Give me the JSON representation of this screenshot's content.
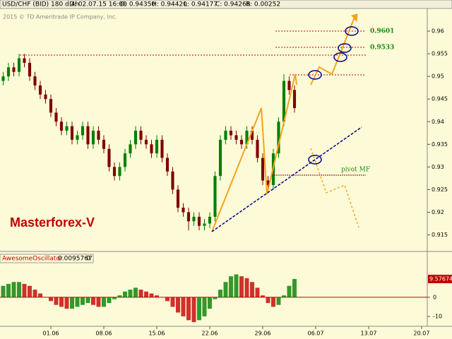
{
  "header": {
    "symbol": "USD/CHF (BID) 180 d 4h",
    "date": "D: 02.07.15 16:00",
    "open": "O: 0.94350",
    "high": "H: 0.94420",
    "low": "L: 0.94177",
    "close": "C: 0.94268",
    "range": "R: 0.00252",
    "copyright": "2015 © TD Ameritrade IP Company, Inc.",
    "watermark": "Masterforex-V",
    "levels": [
      "0.9601",
      "0.9533",
      "pivot MF"
    ]
  },
  "chart_data": [
    {
      "type": "candlestick",
      "title": "USD/CHF (BID) 180 d 4h",
      "up_color": "#008000",
      "down_color": "#800000",
      "x": [
        -5,
        -4,
        -3,
        -2,
        -1,
        0,
        1,
        2,
        3,
        4,
        5,
        6,
        7,
        8,
        9,
        10,
        11,
        12,
        13,
        14,
        15,
        16,
        17,
        18,
        19,
        20,
        21,
        22,
        23,
        24,
        25,
        26,
        27,
        28,
        29,
        30,
        31,
        32,
        33,
        34,
        35,
        36,
        37,
        38,
        39,
        40,
        41,
        42,
        43,
        44,
        45,
        46,
        47,
        48,
        49,
        50
      ],
      "open": [
        0.949,
        0.95,
        0.952,
        0.951,
        0.954,
        0.953,
        0.95,
        0.948,
        0.946,
        0.945,
        0.942,
        0.94,
        0.938,
        0.939,
        0.936,
        0.937,
        0.939,
        0.935,
        0.938,
        0.936,
        0.934,
        0.93,
        0.928,
        0.93,
        0.933,
        0.935,
        0.938,
        0.936,
        0.935,
        0.933,
        0.936,
        0.932,
        0.929,
        0.925,
        0.921,
        0.92,
        0.918,
        0.919,
        0.917,
        0.9175,
        0.919,
        0.928,
        0.936,
        0.938,
        0.937,
        0.936,
        0.935,
        0.938,
        0.936,
        0.932,
        0.927,
        0.926,
        0.933,
        0.94,
        0.949,
        0.947
      ],
      "high": [
        0.951,
        0.953,
        0.953,
        0.955,
        0.955,
        0.954,
        0.951,
        0.949,
        0.947,
        0.946,
        0.943,
        0.941,
        0.94,
        0.94,
        0.938,
        0.94,
        0.94,
        0.939,
        0.939,
        0.937,
        0.935,
        0.931,
        0.931,
        0.934,
        0.936,
        0.939,
        0.939,
        0.937,
        0.936,
        0.937,
        0.937,
        0.933,
        0.93,
        0.926,
        0.922,
        0.921,
        0.92,
        0.92,
        0.9185,
        0.92,
        0.929,
        0.937,
        0.939,
        0.939,
        0.938,
        0.937,
        0.939,
        0.939,
        0.937,
        0.933,
        0.928,
        0.934,
        0.941,
        0.9505,
        0.95,
        0.948
      ],
      "low": [
        0.948,
        0.949,
        0.95,
        0.95,
        0.952,
        0.949,
        0.947,
        0.945,
        0.944,
        0.941,
        0.939,
        0.937,
        0.937,
        0.935,
        0.935,
        0.936,
        0.934,
        0.934,
        0.935,
        0.933,
        0.929,
        0.927,
        0.927,
        0.929,
        0.932,
        0.934,
        0.935,
        0.934,
        0.932,
        0.932,
        0.931,
        0.928,
        0.924,
        0.92,
        0.919,
        0.916,
        0.917,
        0.916,
        0.916,
        0.9165,
        0.918,
        0.927,
        0.935,
        0.936,
        0.935,
        0.934,
        0.934,
        0.935,
        0.931,
        0.926,
        0.9245,
        0.925,
        0.932,
        0.939,
        0.946,
        0.942
      ],
      "close": [
        0.95,
        0.952,
        0.951,
        0.954,
        0.953,
        0.95,
        0.948,
        0.946,
        0.945,
        0.942,
        0.94,
        0.938,
        0.939,
        0.936,
        0.937,
        0.939,
        0.935,
        0.938,
        0.936,
        0.934,
        0.93,
        0.928,
        0.93,
        0.933,
        0.935,
        0.938,
        0.936,
        0.935,
        0.933,
        0.936,
        0.932,
        0.929,
        0.925,
        0.921,
        0.92,
        0.918,
        0.919,
        0.917,
        0.9175,
        0.919,
        0.928,
        0.936,
        0.938,
        0.937,
        0.936,
        0.935,
        0.938,
        0.936,
        0.932,
        0.927,
        0.926,
        0.933,
        0.94,
        0.949,
        0.947,
        0.943
      ],
      "xlim": [
        -5.6,
        75.07
      ],
      "ylim": [
        0.9115,
        0.965
      ],
      "yticks": [
        0.96,
        0.955,
        0.95,
        0.945,
        0.94,
        0.935,
        0.93,
        0.925,
        0.92,
        0.915
      ]
    },
    {
      "type": "histogram_oscillator",
      "title": "AwesomeOscillator",
      "readouts": [
        "0.0095767",
        "0"
      ],
      "last_label": "9.57674",
      "up_color": "#008000",
      "down_color": "#c00000",
      "x": [
        -5,
        -4,
        -3,
        -2,
        -1,
        0,
        1,
        2,
        3,
        4,
        5,
        6,
        7,
        8,
        9,
        10,
        11,
        12,
        13,
        14,
        15,
        16,
        17,
        18,
        19,
        20,
        21,
        22,
        23,
        24,
        25,
        26,
        27,
        28,
        29,
        30,
        31,
        32,
        33,
        34,
        35,
        36,
        37,
        38,
        39,
        40,
        41,
        42,
        43,
        44,
        45,
        46,
        47,
        48,
        49,
        50
      ],
      "values": [
        6,
        7,
        8,
        8,
        7,
        6,
        4,
        2,
        0,
        -2,
        -4,
        -5,
        -6,
        -6,
        -5,
        -4,
        -3,
        -4,
        -5,
        -5,
        -3,
        -1,
        1,
        3,
        4,
        5,
        4,
        3,
        2,
        1,
        0,
        -2,
        -5,
        -8,
        -10,
        -12,
        -13,
        -12,
        -10,
        -6,
        -1,
        4,
        8,
        11,
        12,
        11,
        10,
        8,
        5,
        1,
        -3,
        -5,
        -4,
        1,
        6,
        9.58
      ],
      "xlim": [
        -5.6,
        75.07
      ],
      "ylim": [
        -15.2,
        18.1
      ],
      "yticks": [
        0,
        -10
      ],
      "xticks": [
        {
          "value": 4,
          "label": "01.06"
        },
        {
          "value": 14,
          "label": "08.06"
        },
        {
          "value": 24,
          "label": "15.06"
        },
        {
          "value": 34,
          "label": "22.06"
        },
        {
          "value": 44,
          "label": "29.06"
        },
        {
          "value": 54,
          "label": "06.07"
        },
        {
          "value": 64,
          "label": "13.07"
        },
        {
          "value": 74,
          "label": "20.07"
        }
      ]
    }
  ]
}
